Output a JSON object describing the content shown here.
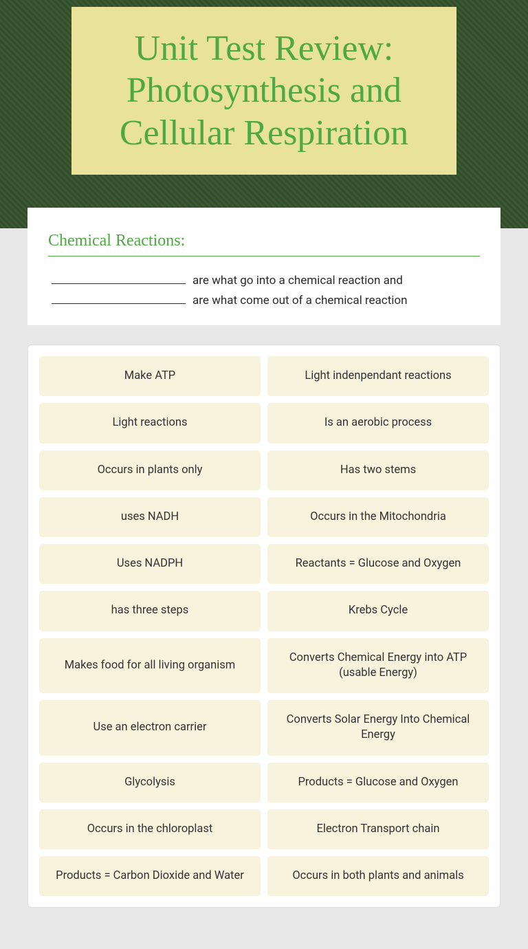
{
  "colors": {
    "accent_green": "#4fa843",
    "title_bg": "#e8e29a",
    "card_bg": "#ffffff",
    "page_bg": "#e8e8e8",
    "hero_overlay": "rgba(40,60,35,0.4)",
    "item_bg": "#f8f3dd",
    "text": "#333333",
    "blank_border": "#333333"
  },
  "title": "Unit Test Review: Photosynthesis and Cellular Respiration",
  "section": {
    "heading": "Chemical Reactions:",
    "line1_text": "are what go into a chemical reaction and",
    "line2_text": "are what come out of a chemical reaction"
  },
  "sort_items": [
    "Make ATP",
    "Light indenpendant reactions",
    "Light reactions",
    "Is an aerobic process",
    "Occurs in plants only",
    "Has two stems",
    "uses NADH",
    "Occurs in the Mitochondria",
    "Uses NADPH",
    "Reactants = Glucose and Oxygen",
    "has three steps",
    "Krebs Cycle",
    "Makes food for all living organism",
    "Converts Chemical Energy into ATP (usable Energy)",
    "Use an electron carrier",
    "Converts Solar Energy Into Chemical Energy",
    "Glycolysis",
    "Products = Glucose and Oxygen",
    "Occurs in the chloroplast",
    "Electron Transport chain",
    "Products = Carbon Dioxide and Water",
    "Occurs in both plants and animals"
  ]
}
